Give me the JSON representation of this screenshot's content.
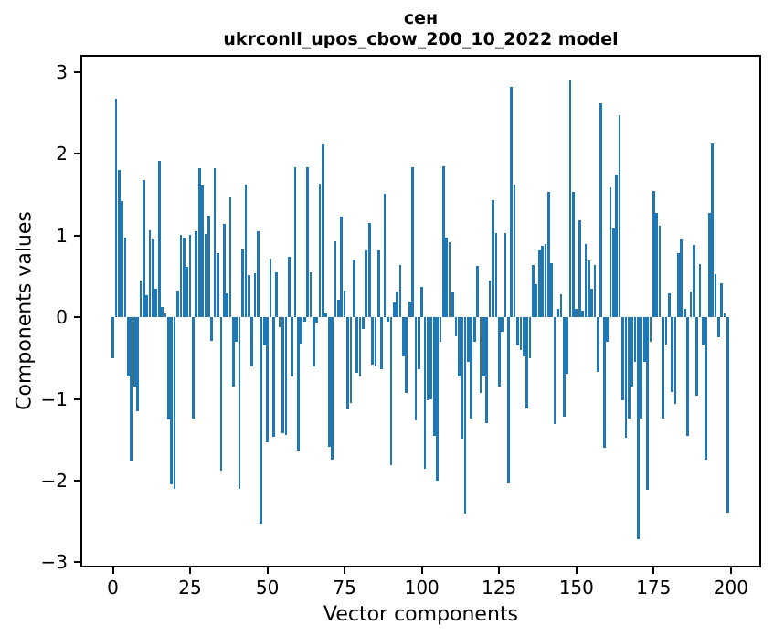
{
  "figure": {
    "title_line1": "сен",
    "title_line2": "ukrconll_upos_cbow_200_10_2022 model"
  },
  "chart_data": {
    "type": "bar",
    "title": "сен",
    "subtitle": "ukrconll_upos_cbow_200_10_2022 model",
    "xlabel": "Vector components",
    "ylabel": "Components values",
    "bar_color": "#1f77b4",
    "x_start": 0,
    "x_ticks": [
      0,
      25,
      50,
      75,
      100,
      125,
      150,
      175,
      200
    ],
    "y_ticks": [
      3,
      2,
      1,
      0,
      -1,
      -2,
      -3
    ],
    "xlim": [
      -9.9,
      209.2
    ],
    "ylim": [
      -3.04,
      3.19
    ],
    "grid": false,
    "legend": "none",
    "values": [
      -0.5,
      2.67,
      1.8,
      1.42,
      0.98,
      -0.72,
      -1.75,
      -0.85,
      -1.15,
      0.45,
      1.68,
      0.27,
      1.07,
      0.95,
      0.35,
      1.91,
      0.12,
      0.05,
      -1.25,
      -2.05,
      -2.1,
      0.33,
      1.01,
      0.97,
      0.62,
      1.01,
      -1.24,
      1.05,
      1.82,
      1.61,
      1.02,
      1.24,
      -0.29,
      1.83,
      0.79,
      -1.88,
      1.14,
      0.29,
      1.47,
      -0.85,
      -0.3,
      -2.1,
      0.83,
      1.62,
      0.52,
      -0.6,
      0.54,
      1.05,
      -2.53,
      -0.35,
      -1.53,
      0.72,
      -1.46,
      0.55,
      -0.12,
      -1.42,
      -1.44,
      0.74,
      -0.72,
      1.84,
      -1.63,
      -0.32,
      -0.05,
      1.84,
      0.55,
      -0.6,
      -0.06,
      1.63,
      2.12,
      0.05,
      -1.59,
      -1.74,
      0.93,
      0.21,
      1.23,
      0.33,
      -1.13,
      -1.05,
      0.71,
      -0.68,
      -0.72,
      -0.14,
      0.82,
      1.15,
      -0.58,
      -0.6,
      0.82,
      -0.63,
      1.51,
      -0.05,
      -1.81,
      0.18,
      0.31,
      0.64,
      -0.48,
      -0.93,
      0.19,
      1.84,
      -1.26,
      -0.64,
      0.37,
      -1.85,
      -1.02,
      -1.0,
      -1.45,
      -2.0,
      -0.3,
      1.85,
      0.97,
      0.92,
      0.3,
      -0.23,
      -0.73,
      -1.48,
      -2.4,
      -0.55,
      -1.24,
      -0.3,
      0.63,
      -0.93,
      -0.73,
      -1.3,
      0.45,
      1.43,
      1.03,
      -0.85,
      -0.18,
      1.03,
      -2.03,
      2.82,
      1.62,
      -0.35,
      -0.4,
      -0.48,
      -1.12,
      -0.5,
      0.64,
      0.41,
      0.82,
      0.88,
      0.9,
      1.53,
      0.66,
      -1.31,
      0.1,
      0.28,
      -1.22,
      -0.69,
      2.9,
      1.53,
      0.1,
      1.19,
      0.08,
      0.9,
      0.7,
      0.35,
      0.64,
      -0.67,
      2.62,
      -1.6,
      -0.3,
      1.59,
      1.09,
      1.75,
      2.47,
      -1.02,
      -1.47,
      -1.24,
      -0.85,
      -0.55,
      -2.72,
      -1.24,
      -0.55,
      -2.11,
      -0.3,
      1.55,
      1.28,
      1.12,
      -1.24,
      -0.33,
      0.29,
      -0.92,
      -1.06,
      0.78,
      0.95,
      0.1,
      -1.45,
      0.31,
      0.89,
      -0.96,
      0.65,
      -0.33,
      -1.74,
      1.28,
      2.13,
      0.53,
      -0.24,
      0.42,
      0.05,
      -2.39
    ]
  }
}
